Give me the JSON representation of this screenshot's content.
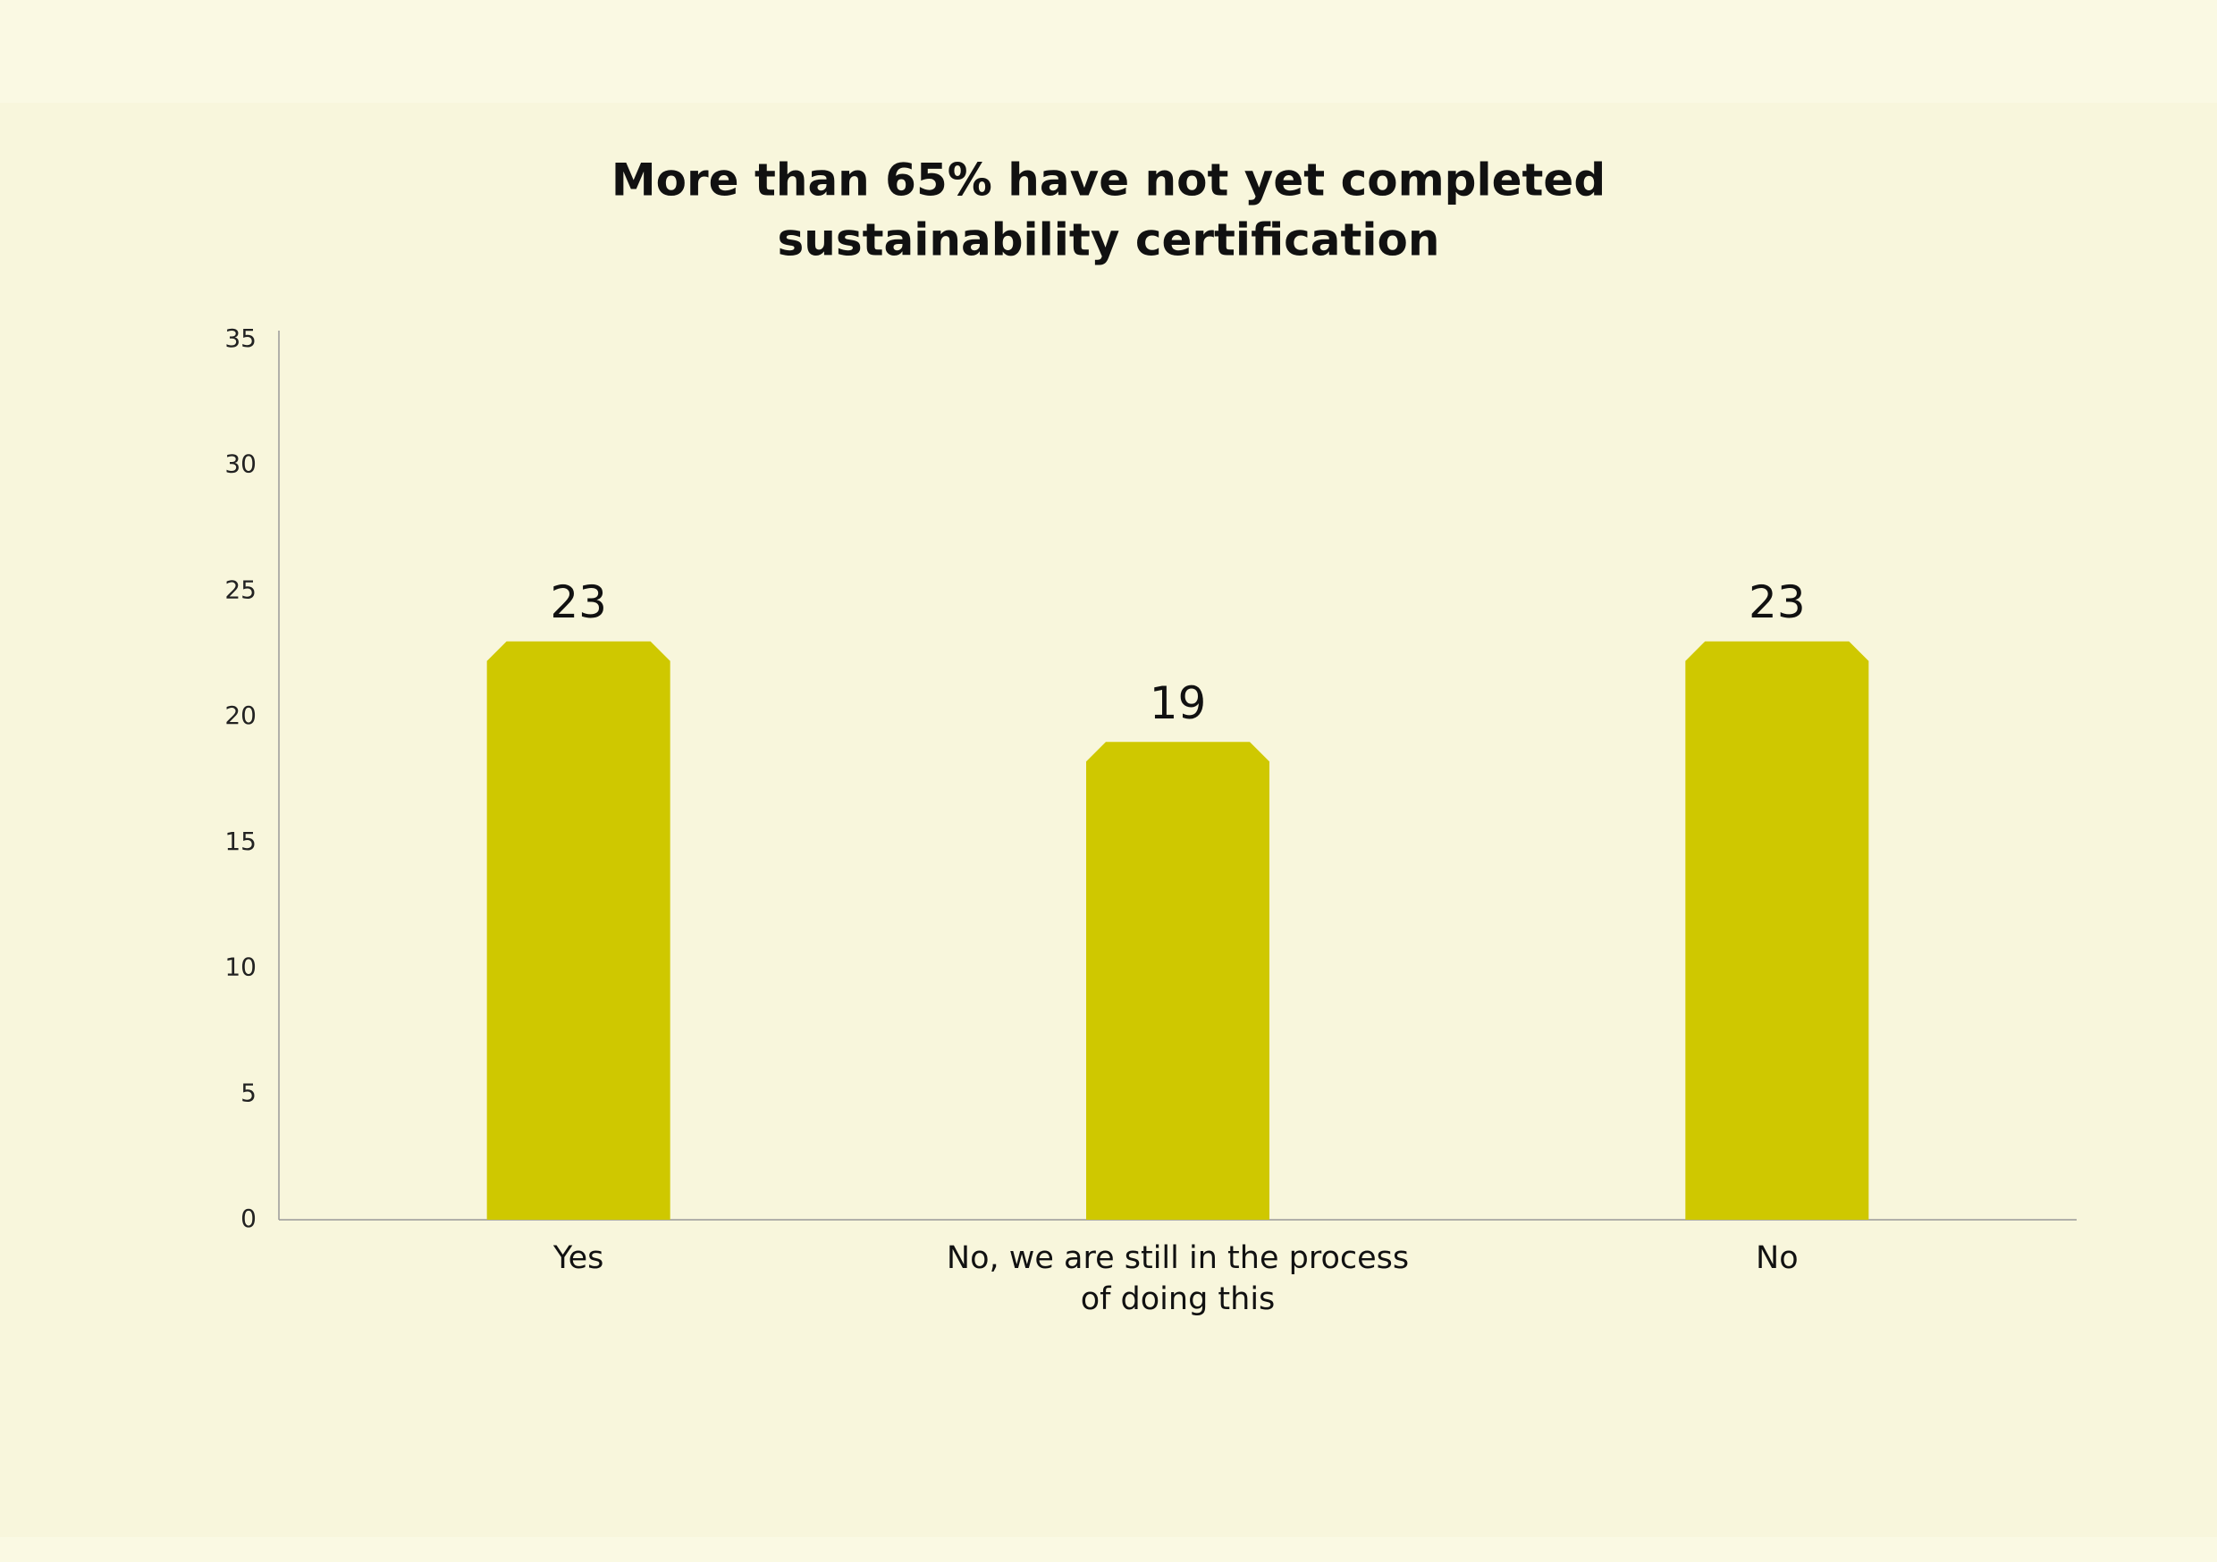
{
  "chart_data": {
    "type": "bar",
    "title": [
      "More than 65% have not yet completed",
      "sustainability certification"
    ],
    "categories": [
      "Yes",
      "No, we are still in the process of doing this",
      "No"
    ],
    "values": [
      23,
      19,
      23
    ],
    "color": "#cfc800",
    "ylim": [
      0,
      35
    ],
    "yticks": [
      0,
      5,
      10,
      15,
      20,
      25,
      30,
      35
    ],
    "grid": false
  }
}
